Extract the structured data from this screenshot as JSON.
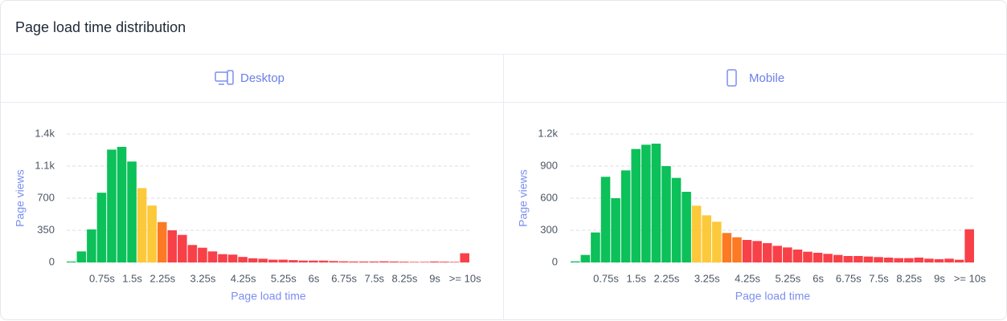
{
  "title": "Page load time distribution",
  "chart_data": [
    {
      "type": "bar",
      "title": "Desktop",
      "ylabel": "Page views",
      "xlabel": "Page load time",
      "categories": [
        null,
        null,
        null,
        "0.75s",
        null,
        null,
        "1.5s",
        null,
        null,
        "2.25s",
        null,
        null,
        null,
        "3.25s",
        null,
        null,
        null,
        "4.25s",
        null,
        null,
        null,
        "5.25s",
        null,
        null,
        "6s",
        null,
        null,
        "6.75s",
        null,
        null,
        "7.5s",
        null,
        null,
        "8.25s",
        null,
        null,
        "9s",
        null,
        null,
        ">= 10s"
      ],
      "values": [
        10,
        120,
        360,
        760,
        1230,
        1260,
        1100,
        810,
        620,
        440,
        350,
        300,
        190,
        160,
        120,
        90,
        85,
        60,
        45,
        40,
        30,
        30,
        25,
        20,
        20,
        20,
        15,
        12,
        10,
        10,
        10,
        12,
        10,
        8,
        6,
        6,
        10,
        8,
        6,
        100
      ],
      "colors": [
        "#0cc05a",
        "#0cc05a",
        "#0cc05a",
        "#0cc05a",
        "#0cc05a",
        "#0cc05a",
        "#0cc05a",
        "#fcc93a",
        "#fcc93a",
        "#fb7a23",
        "#f84048",
        "#f84048",
        "#f84048",
        "#f84048",
        "#f84048",
        "#f84048",
        "#f84048",
        "#f84048",
        "#f84048",
        "#f84048",
        "#f84048",
        "#f84048",
        "#f84048",
        "#f84048",
        "#f84048",
        "#f84048",
        "#f84048",
        "#f84048",
        "#f84048",
        "#f84048",
        "#f84048",
        "#f84048",
        "#f84048",
        "#f84048",
        "#f84048",
        "#f84048",
        "#f84048",
        "#f84048",
        "#f84048",
        "#f84048"
      ],
      "ylim": [
        0,
        1400
      ],
      "yticks": [
        0,
        350,
        700,
        {
          "value": 1050,
          "label": "1.1k"
        },
        {
          "value": 1400,
          "label": "1.4k"
        }
      ],
      "grid": true
    },
    {
      "type": "bar",
      "title": "Mobile",
      "ylabel": "Page views",
      "xlabel": "Page load time",
      "categories": [
        null,
        null,
        null,
        "0.75s",
        null,
        null,
        "1.5s",
        null,
        null,
        "2.25s",
        null,
        null,
        null,
        "3.25s",
        null,
        null,
        null,
        "4.25s",
        null,
        null,
        null,
        "5.25s",
        null,
        null,
        "6s",
        null,
        null,
        "6.75s",
        null,
        null,
        "7.5s",
        null,
        null,
        "8.25s",
        null,
        null,
        "9s",
        null,
        null,
        ">= 10s"
      ],
      "values": [
        10,
        70,
        280,
        800,
        600,
        860,
        1060,
        1100,
        1110,
        900,
        790,
        660,
        530,
        440,
        380,
        275,
        235,
        210,
        200,
        180,
        155,
        140,
        120,
        100,
        90,
        80,
        70,
        60,
        60,
        55,
        50,
        45,
        40,
        40,
        45,
        35,
        30,
        35,
        25,
        310
      ],
      "colors": [
        "#0cc05a",
        "#0cc05a",
        "#0cc05a",
        "#0cc05a",
        "#0cc05a",
        "#0cc05a",
        "#0cc05a",
        "#0cc05a",
        "#0cc05a",
        "#0cc05a",
        "#0cc05a",
        "#0cc05a",
        "#fcc93a",
        "#fcc93a",
        "#fcc93a",
        "#fb7a23",
        "#fb7a23",
        "#f84048",
        "#f84048",
        "#f84048",
        "#f84048",
        "#f84048",
        "#f84048",
        "#f84048",
        "#f84048",
        "#f84048",
        "#f84048",
        "#f84048",
        "#f84048",
        "#f84048",
        "#f84048",
        "#f84048",
        "#f84048",
        "#f84048",
        "#f84048",
        "#f84048",
        "#f84048",
        "#f84048",
        "#f84048",
        "#f84048"
      ],
      "ylim": [
        0,
        1200
      ],
      "yticks": [
        0,
        300,
        600,
        900,
        {
          "value": 1200,
          "label": "1.2k"
        }
      ],
      "grid": true
    }
  ]
}
